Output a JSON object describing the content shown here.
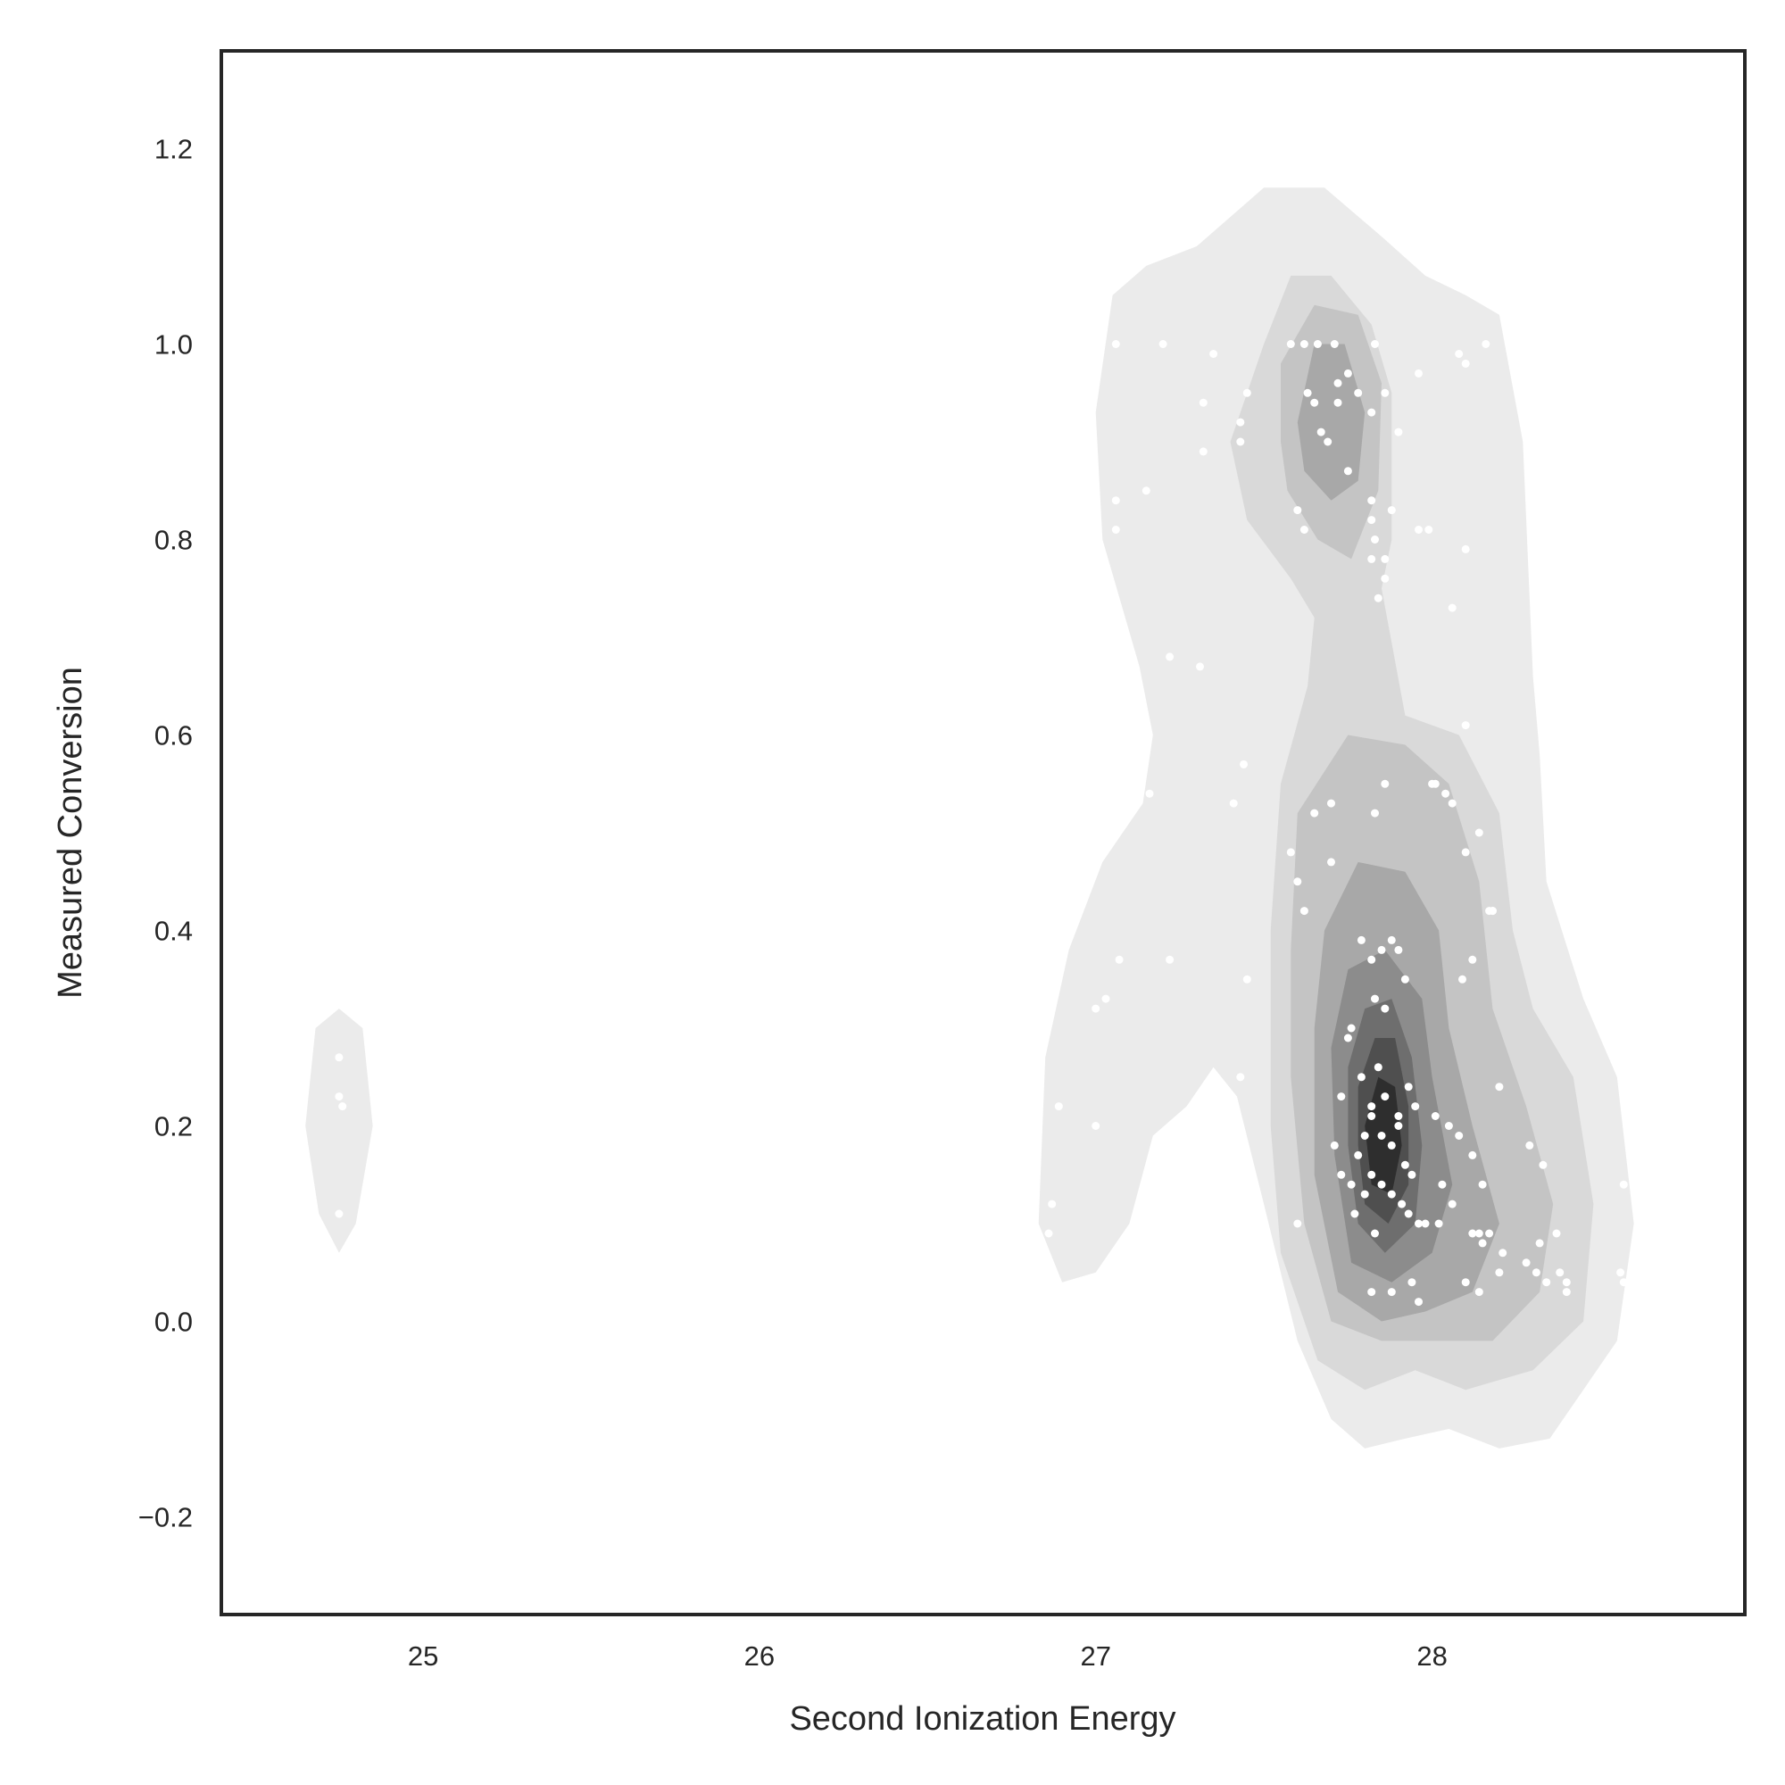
{
  "chart_data": {
    "type": "scatter",
    "subtype": "kde-density-contour-with-points",
    "title": "",
    "xlabel": "Second Ionization Energy",
    "ylabel": "Measured Conversion",
    "xlim": [
      24.4,
      28.93
    ],
    "ylim": [
      -0.3,
      1.3
    ],
    "xticks": [
      25,
      26,
      27,
      28
    ],
    "yticks": [
      -0.2,
      0.0,
      0.2,
      0.4,
      0.6,
      0.8,
      1.0,
      1.2
    ],
    "xtick_labels": [
      "25",
      "26",
      "27",
      "28"
    ],
    "ytick_labels": [
      "−0.2",
      "0.0",
      "0.2",
      "0.4",
      "0.6",
      "0.8",
      "1.0",
      "1.2"
    ],
    "grid": false,
    "legend": "none",
    "colors": {
      "levels": [
        "#ebebeb",
        "#d9d9d9",
        "#c4c4c4",
        "#a8a8a8",
        "#8c8c8c",
        "#6e6e6e",
        "#4f4f4f",
        "#2e2e2e"
      ],
      "points": "#ffffff",
      "frame": "#262626",
      "text": "#262626"
    },
    "density_contours": [
      {
        "level": 1,
        "polygons": [
          [
            [
              24.75,
              0.07
            ],
            [
              24.69,
              0.11
            ],
            [
              24.65,
              0.2
            ],
            [
              24.68,
              0.3
            ],
            [
              24.75,
              0.32
            ],
            [
              24.82,
              0.3
            ],
            [
              24.85,
              0.2
            ],
            [
              24.8,
              0.1
            ]
          ],
          [
            [
              27.0,
              0.93
            ],
            [
              27.05,
              1.05
            ],
            [
              27.15,
              1.08
            ],
            [
              27.3,
              1.1
            ],
            [
              27.5,
              1.16
            ],
            [
              27.68,
              1.16
            ],
            [
              27.85,
              1.11
            ],
            [
              27.98,
              1.07
            ],
            [
              28.1,
              1.05
            ],
            [
              28.2,
              1.03
            ],
            [
              28.27,
              0.9
            ],
            [
              28.3,
              0.66
            ],
            [
              28.32,
              0.58
            ],
            [
              28.34,
              0.45
            ],
            [
              28.45,
              0.33
            ],
            [
              28.55,
              0.25
            ],
            [
              28.6,
              0.1
            ],
            [
              28.55,
              -0.02
            ],
            [
              28.45,
              -0.07
            ],
            [
              28.35,
              -0.12
            ],
            [
              28.2,
              -0.13
            ],
            [
              28.05,
              -0.11
            ],
            [
              27.92,
              -0.12
            ],
            [
              27.8,
              -0.13
            ],
            [
              27.7,
              -0.1
            ],
            [
              27.6,
              -0.02
            ],
            [
              27.5,
              0.12
            ],
            [
              27.42,
              0.23
            ],
            [
              27.35,
              0.26
            ],
            [
              27.27,
              0.22
            ],
            [
              27.17,
              0.19
            ],
            [
              27.1,
              0.1
            ],
            [
              27.0,
              0.05
            ],
            [
              26.9,
              0.04
            ],
            [
              26.83,
              0.1
            ],
            [
              26.85,
              0.27
            ],
            [
              26.92,
              0.38
            ],
            [
              27.02,
              0.47
            ],
            [
              27.14,
              0.53
            ],
            [
              27.17,
              0.6
            ],
            [
              27.13,
              0.67
            ],
            [
              27.02,
              0.8
            ]
          ]
        ]
      },
      {
        "level": 2,
        "polygons": [
          [
            [
              27.4,
              0.9
            ],
            [
              27.5,
              1.0
            ],
            [
              27.58,
              1.07
            ],
            [
              27.7,
              1.07
            ],
            [
              27.82,
              1.02
            ],
            [
              27.88,
              0.95
            ],
            [
              27.88,
              0.8
            ],
            [
              27.85,
              0.75
            ],
            [
              27.92,
              0.62
            ],
            [
              28.08,
              0.6
            ],
            [
              28.2,
              0.52
            ],
            [
              28.24,
              0.4
            ],
            [
              28.3,
              0.32
            ],
            [
              28.42,
              0.25
            ],
            [
              28.48,
              0.12
            ],
            [
              28.45,
              0.0
            ],
            [
              28.3,
              -0.05
            ],
            [
              28.1,
              -0.07
            ],
            [
              27.95,
              -0.05
            ],
            [
              27.8,
              -0.07
            ],
            [
              27.66,
              -0.04
            ],
            [
              27.55,
              0.07
            ],
            [
              27.52,
              0.2
            ],
            [
              27.52,
              0.4
            ],
            [
              27.55,
              0.55
            ],
            [
              27.63,
              0.65
            ],
            [
              27.65,
              0.72
            ],
            [
              27.58,
              0.76
            ],
            [
              27.45,
              0.82
            ]
          ]
        ]
      },
      {
        "level": 3,
        "polygons": [
          [
            [
              27.55,
              0.9
            ],
            [
              27.55,
              0.98
            ],
            [
              27.65,
              1.04
            ],
            [
              27.78,
              1.03
            ],
            [
              27.85,
              0.96
            ],
            [
              27.84,
              0.85
            ],
            [
              27.76,
              0.78
            ],
            [
              27.66,
              0.8
            ],
            [
              27.57,
              0.85
            ]
          ],
          [
            [
              27.58,
              0.38
            ],
            [
              27.6,
              0.52
            ],
            [
              27.75,
              0.6
            ],
            [
              27.92,
              0.59
            ],
            [
              28.05,
              0.55
            ],
            [
              28.14,
              0.45
            ],
            [
              28.18,
              0.32
            ],
            [
              28.28,
              0.22
            ],
            [
              28.36,
              0.12
            ],
            [
              28.32,
              0.03
            ],
            [
              28.18,
              -0.02
            ],
            [
              28.0,
              -0.02
            ],
            [
              27.85,
              -0.02
            ],
            [
              27.7,
              0.0
            ],
            [
              27.62,
              0.1
            ],
            [
              27.58,
              0.25
            ]
          ]
        ]
      },
      {
        "level": 4,
        "polygons": [
          [
            [
              27.6,
              0.92
            ],
            [
              27.65,
              1.0
            ],
            [
              27.74,
              1.0
            ],
            [
              27.8,
              0.93
            ],
            [
              27.78,
              0.86
            ],
            [
              27.7,
              0.84
            ],
            [
              27.62,
              0.87
            ]
          ],
          [
            [
              27.65,
              0.3
            ],
            [
              27.68,
              0.4
            ],
            [
              27.78,
              0.47
            ],
            [
              27.92,
              0.46
            ],
            [
              28.02,
              0.4
            ],
            [
              28.05,
              0.3
            ],
            [
              28.12,
              0.2
            ],
            [
              28.2,
              0.1
            ],
            [
              28.12,
              0.03
            ],
            [
              27.98,
              0.01
            ],
            [
              27.85,
              0.0
            ],
            [
              27.72,
              0.03
            ],
            [
              27.65,
              0.15
            ]
          ]
        ]
      },
      {
        "level": 5,
        "polygons": [
          [
            [
              27.7,
              0.28
            ],
            [
              27.75,
              0.36
            ],
            [
              27.86,
              0.38
            ],
            [
              27.97,
              0.33
            ],
            [
              28.0,
              0.25
            ],
            [
              28.06,
              0.14
            ],
            [
              28.0,
              0.07
            ],
            [
              27.88,
              0.04
            ],
            [
              27.76,
              0.06
            ],
            [
              27.71,
              0.17
            ]
          ]
        ]
      },
      {
        "level": 6,
        "polygons": [
          [
            [
              27.75,
              0.26
            ],
            [
              27.8,
              0.32
            ],
            [
              27.88,
              0.33
            ],
            [
              27.94,
              0.27
            ],
            [
              27.97,
              0.18
            ],
            [
              27.95,
              0.1
            ],
            [
              27.86,
              0.07
            ],
            [
              27.78,
              0.1
            ],
            [
              27.75,
              0.18
            ]
          ]
        ]
      },
      {
        "level": 7,
        "polygons": [
          [
            [
              27.78,
              0.24
            ],
            [
              27.83,
              0.29
            ],
            [
              27.89,
              0.29
            ],
            [
              27.93,
              0.22
            ],
            [
              27.93,
              0.14
            ],
            [
              27.87,
              0.1
            ],
            [
              27.8,
              0.12
            ],
            [
              27.78,
              0.18
            ]
          ]
        ]
      },
      {
        "level": 8,
        "polygons": [
          [
            [
              27.8,
              0.2
            ],
            [
              27.84,
              0.25
            ],
            [
              27.89,
              0.24
            ],
            [
              27.91,
              0.18
            ],
            [
              27.88,
              0.13
            ],
            [
              27.82,
              0.14
            ]
          ]
        ]
      }
    ],
    "points": {
      "x": [
        24.75,
        24.75,
        24.76,
        24.75,
        27.06,
        27.2,
        27.35,
        27.06,
        27.15,
        27.06,
        27.22,
        27.31,
        27.03,
        27.0,
        27.07,
        27.16,
        27.22,
        26.89,
        26.87,
        26.86,
        27.0,
        27.32,
        27.32,
        27.43,
        27.45,
        27.43,
        27.44,
        27.41,
        27.45,
        27.43,
        27.58,
        27.62,
        27.66,
        27.71,
        27.75,
        27.78,
        27.82,
        27.83,
        27.63,
        27.65,
        27.67,
        27.69,
        27.72,
        27.82,
        27.86,
        27.9,
        27.82,
        27.86,
        27.84,
        27.88,
        27.96,
        27.99,
        27.6,
        27.62,
        27.75,
        27.86,
        27.83,
        27.82,
        27.72,
        28.08,
        28.1,
        28.16,
        27.96,
        28.1,
        28.06,
        28.1,
        28.18,
        28.17,
        27.58,
        27.7,
        27.83,
        27.86,
        28.0,
        28.01,
        28.04,
        28.06,
        28.14,
        28.1,
        28.18,
        28.09,
        28.12,
        27.6,
        27.62,
        27.65,
        27.7,
        27.82,
        27.88,
        27.92,
        27.85,
        27.9,
        27.79,
        27.83,
        27.86,
        27.76,
        27.75,
        27.79,
        27.82,
        27.84,
        27.86,
        27.9,
        27.93,
        27.95,
        27.73,
        27.71,
        27.78,
        27.8,
        27.82,
        27.85,
        27.88,
        27.9,
        27.92,
        27.94,
        28.01,
        28.05,
        28.08,
        28.12,
        28.15,
        28.2,
        28.29,
        28.33,
        27.73,
        27.76,
        27.8,
        27.82,
        27.85,
        27.88,
        27.91,
        27.93,
        27.96,
        27.98,
        28.03,
        28.06,
        28.12,
        28.15,
        28.21,
        28.28,
        28.31,
        28.34,
        28.4,
        28.4,
        28.56,
        28.57,
        28.57,
        27.6,
        27.82,
        27.88,
        27.94,
        28.1,
        28.14,
        28.2,
        28.37,
        28.32,
        28.38,
        27.77,
        27.83,
        27.96,
        28.14,
        28.17,
        28.02
      ],
      "y": [
        0.27,
        0.23,
        0.22,
        0.11,
        1.0,
        1.0,
        0.99,
        0.84,
        0.85,
        0.81,
        0.68,
        0.67,
        0.33,
        0.32,
        0.37,
        0.54,
        0.37,
        0.22,
        0.12,
        0.09,
        0.2,
        0.94,
        0.89,
        0.92,
        0.95,
        0.9,
        0.57,
        0.53,
        0.35,
        0.25,
        1.0,
        1.0,
        1.0,
        1.0,
        0.97,
        0.95,
        0.93,
        1.0,
        0.95,
        0.94,
        0.91,
        0.9,
        0.96,
        0.84,
        0.95,
        0.91,
        0.82,
        0.78,
        0.74,
        0.83,
        0.97,
        0.81,
        0.83,
        0.81,
        0.87,
        0.76,
        0.8,
        0.78,
        0.94,
        0.99,
        0.98,
        1.0,
        0.81,
        0.79,
        0.73,
        0.61,
        0.42,
        0.42,
        0.48,
        0.53,
        0.52,
        0.55,
        0.55,
        0.55,
        0.54,
        0.53,
        0.5,
        0.48,
        0.42,
        0.35,
        0.37,
        0.45,
        0.42,
        0.52,
        0.47,
        0.37,
        0.39,
        0.35,
        0.38,
        0.38,
        0.39,
        0.33,
        0.32,
        0.3,
        0.29,
        0.25,
        0.22,
        0.26,
        0.23,
        0.21,
        0.24,
        0.22,
        0.23,
        0.18,
        0.17,
        0.19,
        0.21,
        0.19,
        0.18,
        0.2,
        0.16,
        0.15,
        0.21,
        0.2,
        0.19,
        0.17,
        0.14,
        0.24,
        0.18,
        0.16,
        0.15,
        0.14,
        0.13,
        0.15,
        0.14,
        0.13,
        0.12,
        0.11,
        0.1,
        0.1,
        0.14,
        0.12,
        0.09,
        0.08,
        0.07,
        0.06,
        0.05,
        0.04,
        0.04,
        0.03,
        0.05,
        0.04,
        0.14,
        0.1,
        0.03,
        0.03,
        0.04,
        0.04,
        0.03,
        0.05,
        0.09,
        0.08,
        0.05,
        0.11,
        0.09,
        0.02,
        0.09,
        0.09,
        0.1
      ]
    }
  }
}
